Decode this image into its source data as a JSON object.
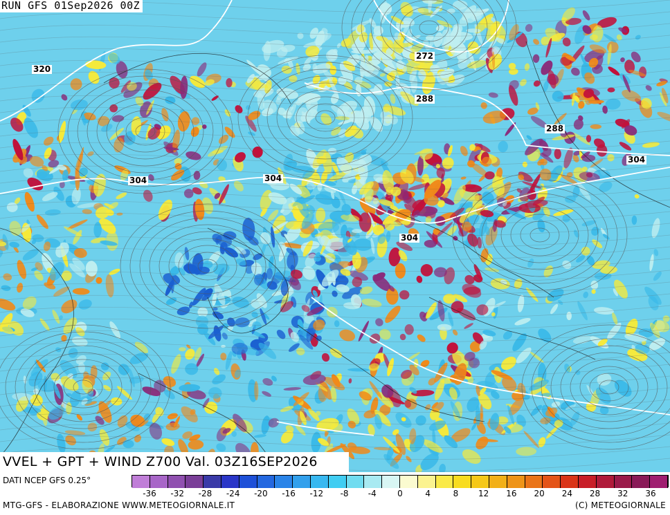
{
  "header": {
    "run_title": "RUN GFS 01Sep2026 00Z"
  },
  "map": {
    "isoheight_labels": [
      "320",
      "272",
      "288",
      "288",
      "304",
      "304",
      "304",
      "304"
    ],
    "field_colors": {
      "strong_negative": "#8a2a7a",
      "negative": "#1a5fd0",
      "weak_negative": "#38b8e8",
      "near_zero": "#bfeef0",
      "weak_positive": "#f6ea3a",
      "positive": "#f08a1a",
      "strong_positive": "#c2103a"
    },
    "contour_color": "#ffffff",
    "streamline_color": "#555555"
  },
  "footer": {
    "product_title": "VVEL + GPT + WIND Z700 Val. 03Z16SEP2026",
    "data_source": "DATI NCEP GFS 0.25°",
    "processing": "MTG-GFS - ELABORAZIONE WWW.METEOGIORNALE.IT",
    "copyright": "(C) METEOGIORNALE"
  },
  "legend": {
    "tick_labels": [
      "-36",
      "-32",
      "-28",
      "-24",
      "-20",
      "-16",
      "-12",
      "-8",
      "-4",
      "0",
      "4",
      "8",
      "12",
      "16",
      "20",
      "24",
      "28",
      "32",
      "36"
    ],
    "colors": [
      "#c07ed8",
      "#a866c8",
      "#9050b0",
      "#7a3e98",
      "#3a3aa8",
      "#2a36c8",
      "#1e50d8",
      "#2468e0",
      "#2a84e8",
      "#32a0ec",
      "#38b8f0",
      "#40cdf2",
      "#70dcf0",
      "#a8eaf2",
      "#d8f6f4",
      "#fbfbd0",
      "#fbf390",
      "#faea48",
      "#f8dc20",
      "#f6c818",
      "#f2b018",
      "#ee9418",
      "#ea7418",
      "#e45418",
      "#da3418",
      "#c81e28",
      "#b01a3a",
      "#9a1a4a",
      "#8a1a58",
      "#a01e70"
    ]
  }
}
